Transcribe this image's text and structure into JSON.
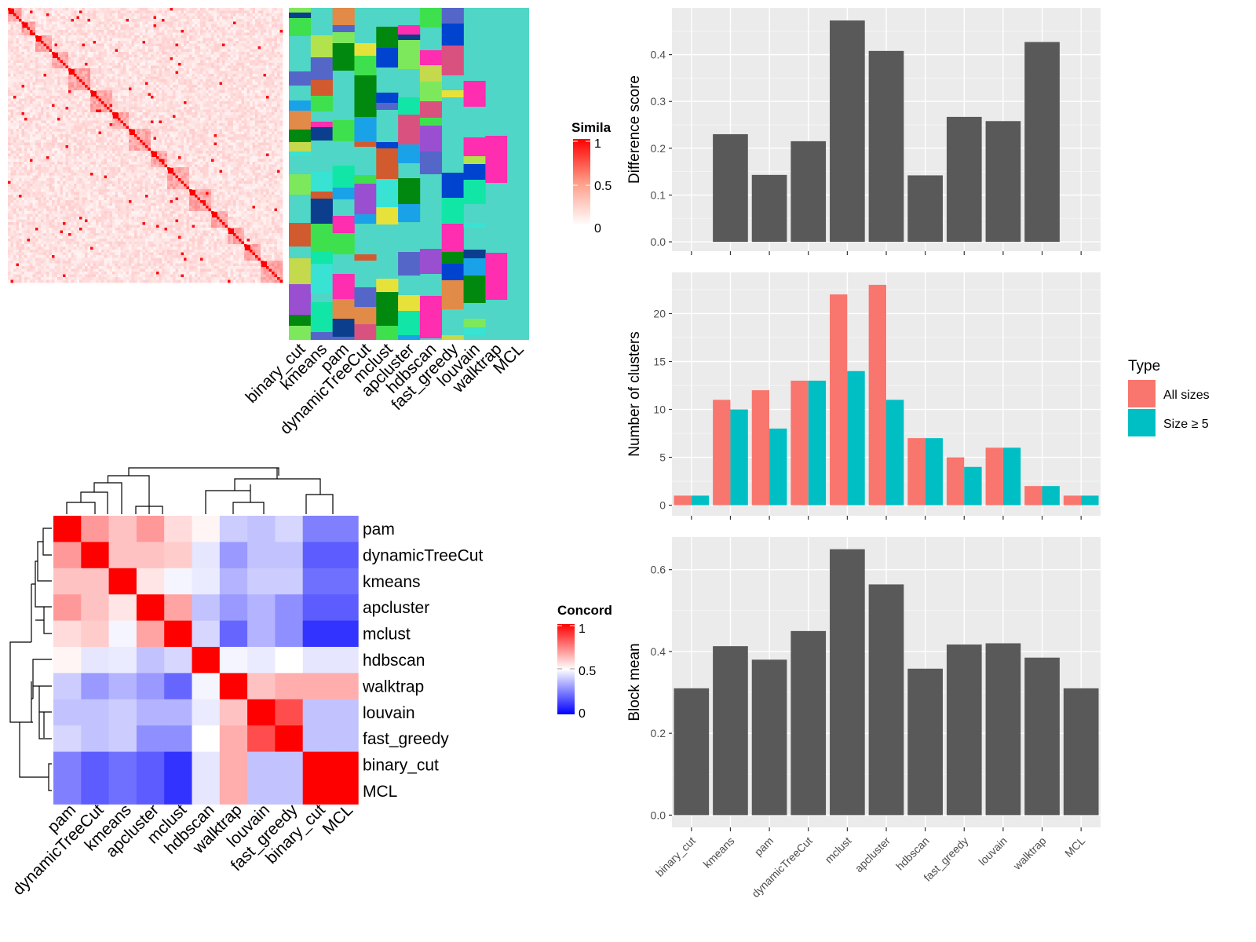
{
  "methods": [
    "binary_cut",
    "kmeans",
    "pam",
    "dynamicTreeCut",
    "mclust",
    "apcluster",
    "hdbscan",
    "fast_greedy",
    "louvain",
    "walktrap",
    "MCL"
  ],
  "colors": {
    "bar": "#595959",
    "panel_bg": "#ebebeb",
    "grid": "#ffffff",
    "all_sizes": "#f8766d",
    "size_ge5": "#00bfc4",
    "heat_high": "#ff0000",
    "heat_low": "#ffffff",
    "conc_low": "#0000ff",
    "conc_mid": "#ffffff",
    "conc_high": "#ff0000"
  },
  "similarity_heatmap": {
    "legend_title": "Simila",
    "legend_ticks": [
      "1",
      "0.5",
      "0"
    ]
  },
  "cluster_annotation": {
    "columns": [
      "binary_cut",
      "kmeans",
      "pam",
      "dynamicTreeCut",
      "mclust",
      "apcluster",
      "hdbscan",
      "fast_greedy",
      "louvain",
      "walktrap",
      "MCL"
    ]
  },
  "concordance_heatmap": {
    "legend_title": "Concord",
    "legend_ticks": [
      "1",
      "0.5",
      "0"
    ],
    "order": [
      "pam",
      "dynamicTreeCut",
      "kmeans",
      "apcluster",
      "mclust",
      "hdbscan",
      "walktrap",
      "louvain",
      "fast_greedy",
      "binary_cut",
      "MCL"
    ],
    "matrix": [
      [
        1.0,
        0.7,
        0.62,
        0.7,
        0.57,
        0.52,
        0.4,
        0.38,
        0.42,
        0.25,
        0.25
      ],
      [
        0.7,
        1.0,
        0.62,
        0.62,
        0.6,
        0.45,
        0.3,
        0.38,
        0.38,
        0.18,
        0.18
      ],
      [
        0.62,
        0.62,
        1.0,
        0.55,
        0.48,
        0.46,
        0.35,
        0.4,
        0.4,
        0.22,
        0.22
      ],
      [
        0.7,
        0.62,
        0.55,
        1.0,
        0.68,
        0.38,
        0.3,
        0.35,
        0.28,
        0.18,
        0.18
      ],
      [
        0.57,
        0.6,
        0.48,
        0.68,
        1.0,
        0.42,
        0.2,
        0.35,
        0.28,
        0.1,
        0.1
      ],
      [
        0.52,
        0.45,
        0.46,
        0.38,
        0.42,
        1.0,
        0.48,
        0.46,
        0.5,
        0.45,
        0.45
      ],
      [
        0.4,
        0.3,
        0.35,
        0.3,
        0.2,
        0.48,
        1.0,
        0.62,
        0.66,
        0.66,
        0.66
      ],
      [
        0.38,
        0.38,
        0.4,
        0.35,
        0.35,
        0.46,
        0.62,
        1.0,
        0.85,
        0.38,
        0.38
      ],
      [
        0.42,
        0.38,
        0.4,
        0.28,
        0.28,
        0.5,
        0.66,
        0.85,
        1.0,
        0.38,
        0.38
      ],
      [
        0.25,
        0.18,
        0.22,
        0.18,
        0.1,
        0.45,
        0.66,
        0.38,
        0.38,
        1.0,
        1.0
      ],
      [
        0.25,
        0.18,
        0.22,
        0.18,
        0.1,
        0.45,
        0.66,
        0.38,
        0.38,
        1.0,
        1.0
      ]
    ]
  },
  "chart_data": [
    {
      "type": "bar",
      "panel": "difference",
      "categories": [
        "binary_cut",
        "kmeans",
        "pam",
        "dynamicTreeCut",
        "mclust",
        "apcluster",
        "hdbscan",
        "fast_greedy",
        "louvain",
        "walktrap",
        "MCL"
      ],
      "values": [
        0,
        0.23,
        0.143,
        0.215,
        0.473,
        0.408,
        0.142,
        0.267,
        0.258,
        0.427,
        0
      ],
      "ylabel": "Difference score",
      "ylim": [
        -0.02,
        0.5
      ],
      "yticks": [
        "0.0",
        "0.1",
        "0.2",
        "0.3",
        "0.4"
      ]
    },
    {
      "type": "bar",
      "panel": "clusters",
      "categories": [
        "binary_cut",
        "kmeans",
        "pam",
        "dynamicTreeCut",
        "mclust",
        "apcluster",
        "hdbscan",
        "fast_greedy",
        "louvain",
        "walktrap",
        "MCL"
      ],
      "series": [
        {
          "name": "All sizes",
          "values": [
            1,
            11,
            12,
            13,
            22,
            23,
            7,
            5,
            6,
            2,
            1
          ]
        },
        {
          "name": "Size ≥ 5",
          "values": [
            1,
            10,
            8,
            13,
            14,
            11,
            7,
            4,
            6,
            2,
            1
          ]
        }
      ],
      "ylabel": "Number of clusters",
      "ylim": [
        -1.1,
        24.3
      ],
      "yticks": [
        "0",
        "5",
        "10",
        "15",
        "20"
      ],
      "legend_title": "Type",
      "legend_position": "right"
    },
    {
      "type": "bar",
      "panel": "blockmean",
      "categories": [
        "binary_cut",
        "kmeans",
        "pam",
        "dynamicTreeCut",
        "mclust",
        "apcluster",
        "hdbscan",
        "fast_greedy",
        "louvain",
        "walktrap",
        "MCL"
      ],
      "values": [
        0.31,
        0.413,
        0.38,
        0.45,
        0.65,
        0.564,
        0.358,
        0.417,
        0.42,
        0.385,
        0.31
      ],
      "ylabel": "Block mean",
      "ylim": [
        -0.03,
        0.68
      ],
      "yticks": [
        "0.0",
        "0.2",
        "0.4",
        "0.6"
      ]
    }
  ]
}
